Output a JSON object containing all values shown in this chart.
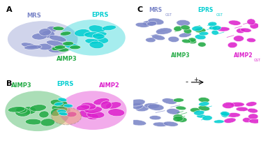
{
  "colors": {
    "MRS": "#7B86C8",
    "AIMP3": "#22AA44",
    "EPRS": "#00CED1",
    "AIMP2": "#DD22CC",
    "orange_highlight": "#E8A060"
  },
  "labels": {
    "A_MRS": "MRS",
    "A_EPRS": "EPRS",
    "A_AIMP3": "AIMP3",
    "B_AIMP3": "AIMP3",
    "B_EPRS": "EPRS",
    "B_AIMP2": "AIMP2",
    "C_MRS": "MRS",
    "C_EPRS": "EPRS",
    "C_AIMP3": "AIMP3",
    "C_AIMP2": "AIMP2"
  }
}
